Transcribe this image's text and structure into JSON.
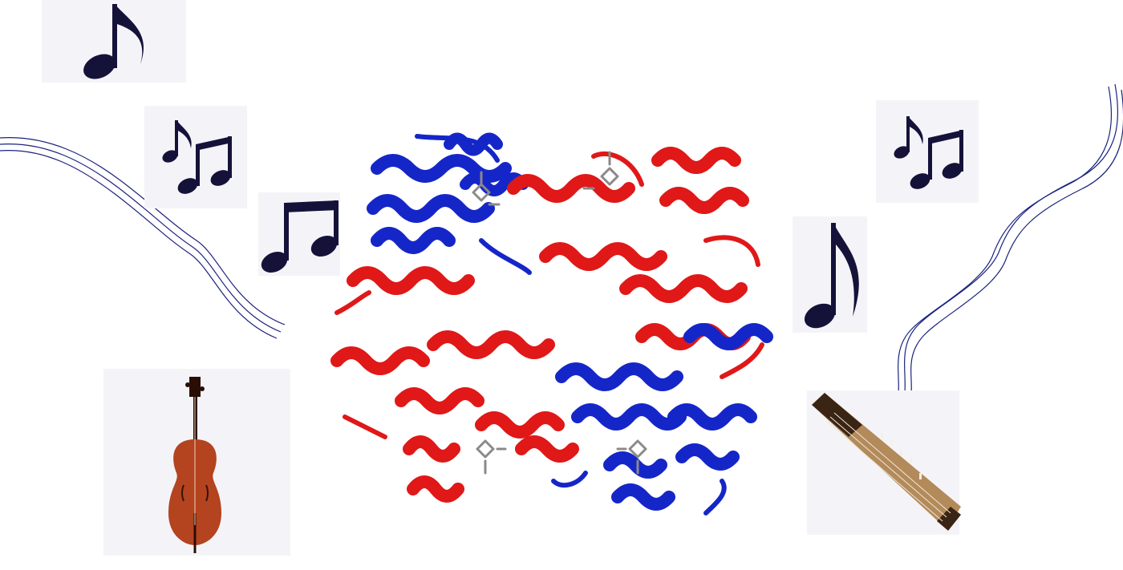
{
  "colors": {
    "background": "#ffffff",
    "tile": "#f4f4f8",
    "note_ink": "#15123a",
    "wave_line": "#1a237e",
    "protein_red": "#e01818",
    "protein_blue": "#1526c8",
    "heme_grey": "#8a8a8a",
    "cello_wood": "#b4431f",
    "zither_wood": "#b38a5a"
  },
  "icons": {
    "notes": [
      "eighth-note-icon",
      "beamed-eighth-notes-icon",
      "beamed-eighth-notes-icon",
      "beamed-eighth-notes-icon",
      "eighth-note-icon"
    ],
    "instruments": [
      "cello-icon",
      "guzheng-icon"
    ],
    "center": "hemoglobin-protein-ribbon-icon",
    "waves": [
      "sound-wave-icon",
      "sound-wave-icon"
    ]
  }
}
